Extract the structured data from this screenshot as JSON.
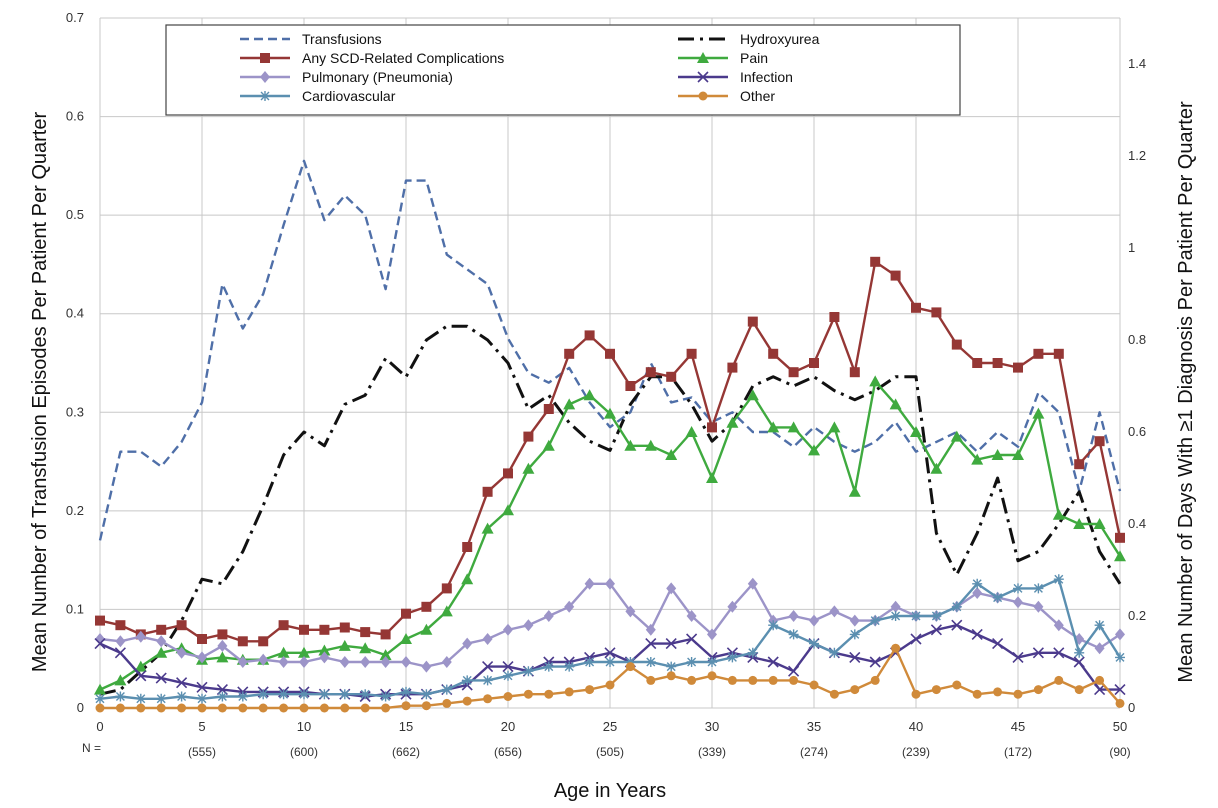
{
  "chart_data": {
    "type": "line",
    "xlabel": "Age in Years",
    "ylabel_left": "Mean Number of Transfusion Episodes Per Patient Per Quarter",
    "ylabel_right": "Mean Number of Days With ≥1 Diagnosis Per Patient Per Quarter",
    "xlim": [
      0,
      50
    ],
    "ylim_left": [
      0,
      0.7
    ],
    "ylim_right": [
      0,
      1.5
    ],
    "x_ticks": [
      0,
      5,
      10,
      15,
      20,
      25,
      30,
      35,
      40,
      45,
      50
    ],
    "y_ticks_left": [
      "0",
      "0.1",
      "0.2",
      "0.3",
      "0.4",
      "0.5",
      "0.6",
      "0.7"
    ],
    "y_ticks_right": [
      "0",
      "0.2",
      "0.4",
      "0.6",
      "0.8",
      "1",
      "1.2",
      "1.4"
    ],
    "n_prefix": "N =",
    "n_labels": [
      {
        "x": 5,
        "label": "(555)"
      },
      {
        "x": 10,
        "label": "(600)"
      },
      {
        "x": 15,
        "label": "(662)"
      },
      {
        "x": 20,
        "label": "(656)"
      },
      {
        "x": 25,
        "label": "(505)"
      },
      {
        "x": 30,
        "label": "(339)"
      },
      {
        "x": 35,
        "label": "(274)"
      },
      {
        "x": 40,
        "label": "(239)"
      },
      {
        "x": 45,
        "label": "(172)"
      },
      {
        "x": 50,
        "label": "(90)"
      }
    ],
    "grid": true,
    "legend_position": "top",
    "series": [
      {
        "name": "Transfusions",
        "axis": "left",
        "color": "#4f6fa8",
        "style": "dashed",
        "marker": "none",
        "x": [
          0,
          1,
          2,
          3,
          4,
          5,
          6,
          7,
          8,
          9,
          10,
          11,
          12,
          13,
          14,
          15,
          16,
          17,
          18,
          19,
          20,
          21,
          22,
          23,
          24,
          25,
          26,
          27,
          28,
          29,
          30,
          31,
          32,
          33,
          34,
          35,
          36,
          37,
          38,
          39,
          40,
          41,
          42,
          43,
          44,
          45,
          46,
          47,
          48,
          49,
          50
        ],
        "values": [
          0.17,
          0.26,
          0.26,
          0.245,
          0.27,
          0.31,
          0.43,
          0.385,
          0.42,
          0.49,
          0.555,
          0.495,
          0.52,
          0.5,
          0.425,
          0.535,
          0.535,
          0.46,
          0.445,
          0.43,
          0.375,
          0.34,
          0.33,
          0.345,
          0.31,
          0.285,
          0.3,
          0.35,
          0.31,
          0.315,
          0.29,
          0.3,
          0.28,
          0.28,
          0.265,
          0.285,
          0.27,
          0.26,
          0.27,
          0.29,
          0.26,
          0.27,
          0.28,
          0.26,
          0.28,
          0.265,
          0.32,
          0.3,
          0.22,
          0.3,
          0.22
        ]
      },
      {
        "name": "Hydroxyurea",
        "axis": "right",
        "color": "#111111",
        "style": "dashdot",
        "marker": "none",
        "x": [
          0,
          1,
          2,
          3,
          4,
          5,
          6,
          7,
          8,
          9,
          10,
          11,
          12,
          13,
          14,
          15,
          16,
          17,
          18,
          19,
          20,
          21,
          22,
          23,
          24,
          25,
          26,
          27,
          28,
          29,
          30,
          31,
          32,
          33,
          34,
          35,
          36,
          37,
          38,
          39,
          40,
          41,
          42,
          43,
          44,
          45,
          46,
          47,
          48,
          49,
          50
        ],
        "values": [
          0.03,
          0.04,
          0.08,
          0.12,
          0.19,
          0.28,
          0.27,
          0.34,
          0.44,
          0.55,
          0.6,
          0.57,
          0.66,
          0.68,
          0.76,
          0.72,
          0.8,
          0.83,
          0.83,
          0.8,
          0.75,
          0.65,
          0.68,
          0.62,
          0.58,
          0.56,
          0.66,
          0.72,
          0.72,
          0.66,
          0.58,
          0.62,
          0.7,
          0.72,
          0.7,
          0.72,
          0.69,
          0.67,
          0.69,
          0.72,
          0.72,
          0.38,
          0.29,
          0.38,
          0.5,
          0.32,
          0.34,
          0.4,
          0.47,
          0.34,
          0.27
        ]
      },
      {
        "name": "Any SCD-Related Complications",
        "axis": "right",
        "color": "#953735",
        "style": "solid",
        "marker": "square",
        "x": [
          0,
          1,
          2,
          3,
          4,
          5,
          6,
          7,
          8,
          9,
          10,
          11,
          12,
          13,
          14,
          15,
          16,
          17,
          18,
          19,
          20,
          21,
          22,
          23,
          24,
          25,
          26,
          27,
          28,
          29,
          30,
          31,
          32,
          33,
          34,
          35,
          36,
          37,
          38,
          39,
          40,
          41,
          42,
          43,
          44,
          45,
          46,
          47,
          48,
          49,
          50
        ],
        "values": [
          0.19,
          0.18,
          0.16,
          0.17,
          0.18,
          0.15,
          0.16,
          0.145,
          0.145,
          0.18,
          0.17,
          0.17,
          0.175,
          0.165,
          0.16,
          0.205,
          0.22,
          0.26,
          0.35,
          0.47,
          0.51,
          0.59,
          0.65,
          0.77,
          0.81,
          0.77,
          0.7,
          0.73,
          0.72,
          0.77,
          0.61,
          0.74,
          0.84,
          0.77,
          0.73,
          0.75,
          0.85,
          0.73,
          0.97,
          0.94,
          0.87,
          0.86,
          0.79,
          0.75,
          0.75,
          0.74,
          0.77,
          0.77,
          0.53,
          0.58,
          0.37
        ]
      },
      {
        "name": "Pain",
        "axis": "right",
        "color": "#3faa3f",
        "style": "solid",
        "marker": "triangle",
        "x": [
          0,
          1,
          2,
          3,
          4,
          5,
          6,
          7,
          8,
          9,
          10,
          11,
          12,
          13,
          14,
          15,
          16,
          17,
          18,
          19,
          20,
          21,
          22,
          23,
          24,
          25,
          26,
          27,
          28,
          29,
          30,
          31,
          32,
          33,
          34,
          35,
          36,
          37,
          38,
          39,
          40,
          41,
          42,
          43,
          44,
          45,
          46,
          47,
          48,
          49,
          50
        ],
        "values": [
          0.04,
          0.06,
          0.09,
          0.12,
          0.13,
          0.105,
          0.11,
          0.105,
          0.105,
          0.12,
          0.12,
          0.125,
          0.135,
          0.13,
          0.115,
          0.15,
          0.17,
          0.21,
          0.28,
          0.39,
          0.43,
          0.52,
          0.57,
          0.66,
          0.68,
          0.64,
          0.57,
          0.57,
          0.55,
          0.6,
          0.5,
          0.62,
          0.68,
          0.61,
          0.61,
          0.56,
          0.61,
          0.47,
          0.71,
          0.66,
          0.6,
          0.52,
          0.59,
          0.54,
          0.55,
          0.55,
          0.64,
          0.42,
          0.4,
          0.4,
          0.33
        ]
      },
      {
        "name": "Pulmonary (Pneumonia)",
        "axis": "right",
        "color": "#9c94c8",
        "style": "solid",
        "marker": "diamond",
        "x": [
          0,
          1,
          2,
          3,
          4,
          5,
          6,
          7,
          8,
          9,
          10,
          11,
          12,
          13,
          14,
          15,
          16,
          17,
          18,
          19,
          20,
          21,
          22,
          23,
          24,
          25,
          26,
          27,
          28,
          29,
          30,
          31,
          32,
          33,
          34,
          35,
          36,
          37,
          38,
          39,
          40,
          41,
          42,
          43,
          44,
          45,
          46,
          47,
          48,
          49,
          50
        ],
        "values": [
          0.15,
          0.145,
          0.155,
          0.145,
          0.12,
          0.11,
          0.135,
          0.1,
          0.105,
          0.1,
          0.1,
          0.11,
          0.1,
          0.1,
          0.1,
          0.1,
          0.09,
          0.1,
          0.14,
          0.15,
          0.17,
          0.18,
          0.2,
          0.22,
          0.27,
          0.27,
          0.21,
          0.17,
          0.26,
          0.2,
          0.16,
          0.22,
          0.27,
          0.19,
          0.2,
          0.19,
          0.21,
          0.19,
          0.19,
          0.22,
          0.2,
          0.2,
          0.22,
          0.25,
          0.24,
          0.23,
          0.22,
          0.18,
          0.15,
          0.13,
          0.16
        ]
      },
      {
        "name": "Infection",
        "axis": "right",
        "color": "#4b3a8c",
        "style": "solid",
        "marker": "x",
        "x": [
          0,
          1,
          2,
          3,
          4,
          5,
          6,
          7,
          8,
          9,
          10,
          11,
          12,
          13,
          14,
          15,
          16,
          17,
          18,
          19,
          20,
          21,
          22,
          23,
          24,
          25,
          26,
          27,
          28,
          29,
          30,
          31,
          32,
          33,
          34,
          35,
          36,
          37,
          38,
          39,
          40,
          41,
          42,
          43,
          44,
          45,
          46,
          47,
          48,
          49,
          50
        ],
        "values": [
          0.14,
          0.12,
          0.07,
          0.065,
          0.055,
          0.045,
          0.04,
          0.035,
          0.035,
          0.035,
          0.035,
          0.03,
          0.03,
          0.025,
          0.03,
          0.03,
          0.03,
          0.04,
          0.05,
          0.09,
          0.09,
          0.08,
          0.1,
          0.1,
          0.11,
          0.12,
          0.1,
          0.14,
          0.14,
          0.15,
          0.11,
          0.12,
          0.11,
          0.1,
          0.08,
          0.14,
          0.12,
          0.11,
          0.1,
          0.12,
          0.15,
          0.17,
          0.18,
          0.16,
          0.14,
          0.11,
          0.12,
          0.12,
          0.1,
          0.04,
          0.04
        ]
      },
      {
        "name": "Cardiovascular",
        "axis": "right",
        "color": "#5b8fb0",
        "style": "solid",
        "marker": "star",
        "x": [
          0,
          1,
          2,
          3,
          4,
          5,
          6,
          7,
          8,
          9,
          10,
          11,
          12,
          13,
          14,
          15,
          16,
          17,
          18,
          19,
          20,
          21,
          22,
          23,
          24,
          25,
          26,
          27,
          28,
          29,
          30,
          31,
          32,
          33,
          34,
          35,
          36,
          37,
          38,
          39,
          40,
          41,
          42,
          43,
          44,
          45,
          46,
          47,
          48,
          49,
          50
        ],
        "values": [
          0.02,
          0.025,
          0.02,
          0.02,
          0.025,
          0.02,
          0.025,
          0.025,
          0.03,
          0.03,
          0.03,
          0.03,
          0.03,
          0.03,
          0.025,
          0.035,
          0.03,
          0.04,
          0.06,
          0.06,
          0.07,
          0.08,
          0.09,
          0.09,
          0.1,
          0.1,
          0.1,
          0.1,
          0.09,
          0.1,
          0.1,
          0.11,
          0.12,
          0.18,
          0.16,
          0.14,
          0.12,
          0.16,
          0.19,
          0.2,
          0.2,
          0.2,
          0.22,
          0.27,
          0.24,
          0.26,
          0.26,
          0.28,
          0.12,
          0.18,
          0.11
        ]
      },
      {
        "name": "Other",
        "axis": "right",
        "color": "#d08a3a",
        "style": "solid",
        "marker": "circle",
        "x": [
          0,
          1,
          2,
          3,
          4,
          5,
          6,
          7,
          8,
          9,
          10,
          11,
          12,
          13,
          14,
          15,
          16,
          17,
          18,
          19,
          20,
          21,
          22,
          23,
          24,
          25,
          26,
          27,
          28,
          29,
          30,
          31,
          32,
          33,
          34,
          35,
          36,
          37,
          38,
          39,
          40,
          41,
          42,
          43,
          44,
          45,
          46,
          47,
          48,
          49,
          50
        ],
        "values": [
          0.0,
          0.0,
          0.0,
          0.0,
          0.0,
          0.0,
          0.0,
          0.0,
          0.0,
          0.0,
          0.0,
          0.0,
          0.0,
          0.0,
          0.0,
          0.005,
          0.005,
          0.01,
          0.015,
          0.02,
          0.025,
          0.03,
          0.03,
          0.035,
          0.04,
          0.05,
          0.09,
          0.06,
          0.07,
          0.06,
          0.07,
          0.06,
          0.06,
          0.06,
          0.06,
          0.05,
          0.03,
          0.04,
          0.06,
          0.13,
          0.03,
          0.04,
          0.05,
          0.03,
          0.035,
          0.03,
          0.04,
          0.06,
          0.04,
          0.06,
          0.01
        ]
      }
    ]
  }
}
